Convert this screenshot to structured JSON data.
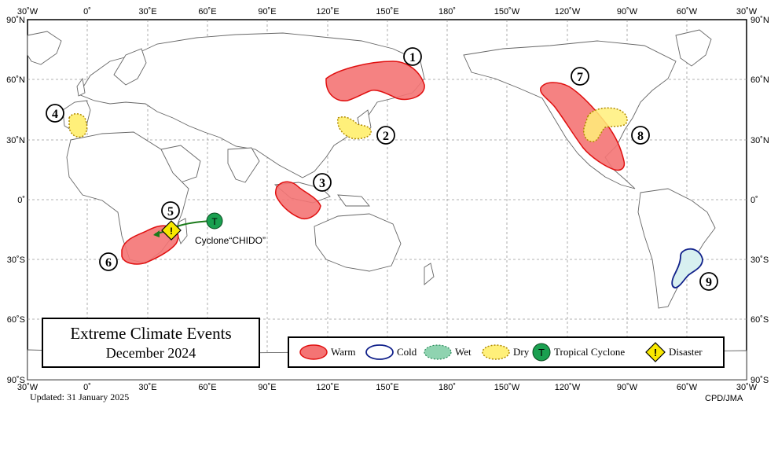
{
  "title": {
    "line1": "Extreme Climate Events",
    "line2": "December  2024"
  },
  "updated": "Updated:  31 January 2025",
  "credit": "CPD/JMA",
  "cyclone_label": "Cyclone“CHIDO”",
  "lon_ticks": [
    "30˚W",
    "0˚",
    "30˚E",
    "60˚E",
    "90˚E",
    "120˚E",
    "150˚E",
    "180˚",
    "150˚W",
    "120˚W",
    "90˚W",
    "60˚W",
    "30˚W"
  ],
  "lat_ticks": [
    "90˚N",
    "60˚N",
    "30˚N",
    "0˚",
    "30˚S",
    "60˚S",
    "90˚S"
  ],
  "legend": [
    {
      "label": "Warm",
      "icon": "warm-swatch"
    },
    {
      "label": "Cold",
      "icon": "cold-swatch"
    },
    {
      "label": "Wet",
      "icon": "wet-swatch"
    },
    {
      "label": "Dry",
      "icon": "dry-swatch"
    },
    {
      "label": "Tropical  Cyclone",
      "icon": "tropical-cyclone-icon"
    },
    {
      "label": "Disaster",
      "icon": "disaster-icon"
    }
  ],
  "events": [
    {
      "number": "1",
      "type": "Warm"
    },
    {
      "number": "2",
      "type": "Dry"
    },
    {
      "number": "3",
      "type": "Warm"
    },
    {
      "number": "4",
      "type": "Dry"
    },
    {
      "number": "5",
      "type": "Disaster"
    },
    {
      "number": "6",
      "type": "Warm"
    },
    {
      "number": "7",
      "type": "Warm"
    },
    {
      "number": "8",
      "type": "Dry"
    },
    {
      "number": "9",
      "type": "Cold"
    }
  ],
  "colors": {
    "warm_fill": "#f47474",
    "warm_stroke": "#e01010",
    "cold_stroke": "#10208a",
    "cold_fill": "#d8f0f0",
    "wet_fill": "#8fd3b0",
    "dry_fill": "#fff07a",
    "dry_stroke": "#b08a00",
    "cyclone": "#1aa050",
    "disaster": "#f8e800"
  }
}
